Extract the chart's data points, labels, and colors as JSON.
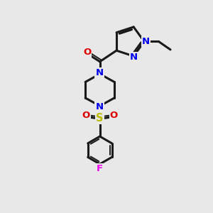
{
  "background_color": "#e8e8e8",
  "bond_color": "#1a1a1a",
  "bond_width": 2.2,
  "N_color": "#0000ee",
  "O_color": "#dd0000",
  "S_color": "#bbbb00",
  "F_color": "#ee00ee",
  "figsize": [
    3.0,
    3.0
  ],
  "dpi": 100,
  "xlim": [
    0,
    10
  ],
  "ylim": [
    0,
    10
  ]
}
